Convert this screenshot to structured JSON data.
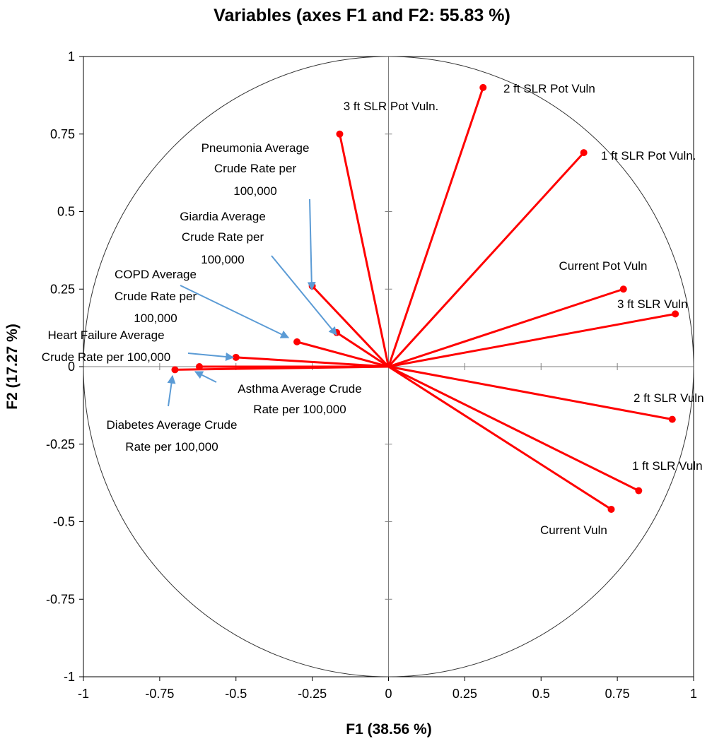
{
  "chart_data": {
    "type": "scatter",
    "subtype": "pca-correlation-circle",
    "title": "Variables (axes F1 and F2: 55.83 %)",
    "xlabel": "F1 (38.56 %)",
    "ylabel": "F2 (17.27 %)",
    "xlim": [
      -1,
      1
    ],
    "ylim": [
      -1,
      1
    ],
    "xticks": [
      "-1",
      "-0.75",
      "-0.5",
      "-0.25",
      "0",
      "0.25",
      "0.5",
      "0.75",
      "1"
    ],
    "yticks": [
      "1",
      "0.75",
      "0.5",
      "0.25",
      "0",
      "-0.25",
      "-0.5",
      "-0.75",
      "-1"
    ],
    "xtick_values": [
      -1,
      -0.75,
      -0.5,
      -0.25,
      0,
      0.25,
      0.5,
      0.75,
      1
    ],
    "ytick_values": [
      1,
      0.75,
      0.5,
      0.25,
      0,
      -0.25,
      -0.5,
      -0.75,
      -1
    ],
    "grid": false,
    "unit_circle": true,
    "vector_color": "#ff0000",
    "arrow_color": "#5b9bd5",
    "variables": [
      {
        "name": "2 ft SLR Pot Vuln",
        "x": 0.31,
        "y": 0.9
      },
      {
        "name": "3 ft SLR Pot Vuln.",
        "x": -0.16,
        "y": 0.75
      },
      {
        "name": "1 ft SLR Pot Vuln.",
        "x": 0.64,
        "y": 0.69
      },
      {
        "name": "Current Pot Vuln",
        "x": 0.77,
        "y": 0.25
      },
      {
        "name": "3 ft SLR Vuln",
        "x": 0.94,
        "y": 0.17
      },
      {
        "name": "2 ft SLR Vuln",
        "x": 0.93,
        "y": -0.17
      },
      {
        "name": "1 ft SLR Vuln",
        "x": 0.82,
        "y": -0.4
      },
      {
        "name": "Current Vuln",
        "x": 0.73,
        "y": -0.46
      },
      {
        "name": "Pneumonia Average Crude Rate per 100,000",
        "x": -0.25,
        "y": 0.26
      },
      {
        "name": "Giardia Average Crude Rate per 100,000",
        "x": -0.17,
        "y": 0.11
      },
      {
        "name": "COPD Average Crude Rate per 100,000",
        "x": -0.3,
        "y": 0.08
      },
      {
        "name": "Heart Failure Average Crude Rate per 100,000",
        "x": -0.5,
        "y": 0.03
      },
      {
        "name": "Asthma Average Crude Rate per 100,000",
        "x": -0.62,
        "y": 0.0
      },
      {
        "name": "Diabetes Average Crude Rate per 100,000",
        "x": -0.7,
        "y": -0.01
      }
    ]
  }
}
